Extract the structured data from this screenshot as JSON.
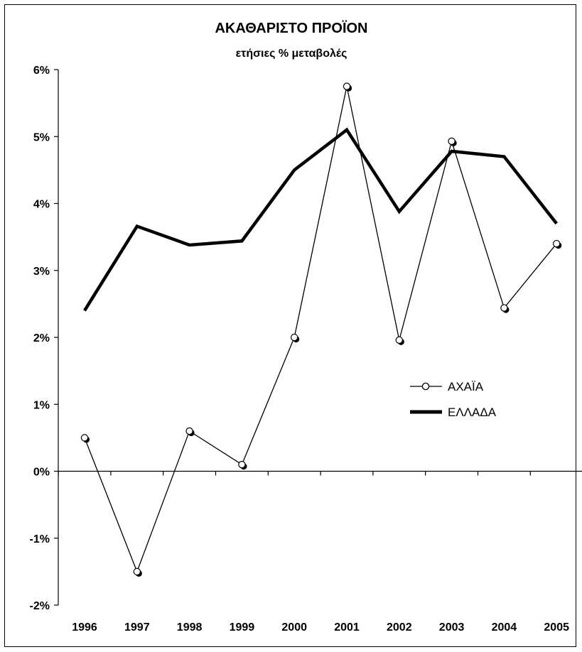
{
  "chart_data": {
    "type": "line",
    "title": "ΑΚΑΘΑΡΙΣΤΟ ΠΡΟΪΟΝ",
    "subtitle": "ετήσιες % μεταβολές",
    "xlabel": "",
    "ylabel": "",
    "x": [
      "1996",
      "1997",
      "1998",
      "1999",
      "2000",
      "2001",
      "2002",
      "2003",
      "2004",
      "2005"
    ],
    "ylim": [
      -2,
      6
    ],
    "yticks": [
      -2,
      -1,
      0,
      1,
      2,
      3,
      4,
      5,
      6
    ],
    "ytick_labels": [
      "-2%",
      "-1%",
      "0%",
      "1%",
      "2%",
      "3%",
      "4%",
      "5%",
      "6%"
    ],
    "grid": false,
    "legend_position": "right-middle",
    "series": [
      {
        "name": "ΑΧΑΪΑ",
        "values": [
          0.5,
          -1.5,
          0.6,
          0.1,
          2.0,
          5.75,
          1.96,
          4.93,
          2.44,
          3.4
        ],
        "style": "thin-line-open-markers",
        "color": "#000000"
      },
      {
        "name": "ΕΛΛΑΔΑ",
        "values": [
          2.4,
          3.66,
          3.38,
          3.44,
          4.5,
          5.1,
          3.88,
          4.78,
          4.7,
          3.7
        ],
        "style": "thick-line",
        "color": "#000000"
      }
    ]
  }
}
